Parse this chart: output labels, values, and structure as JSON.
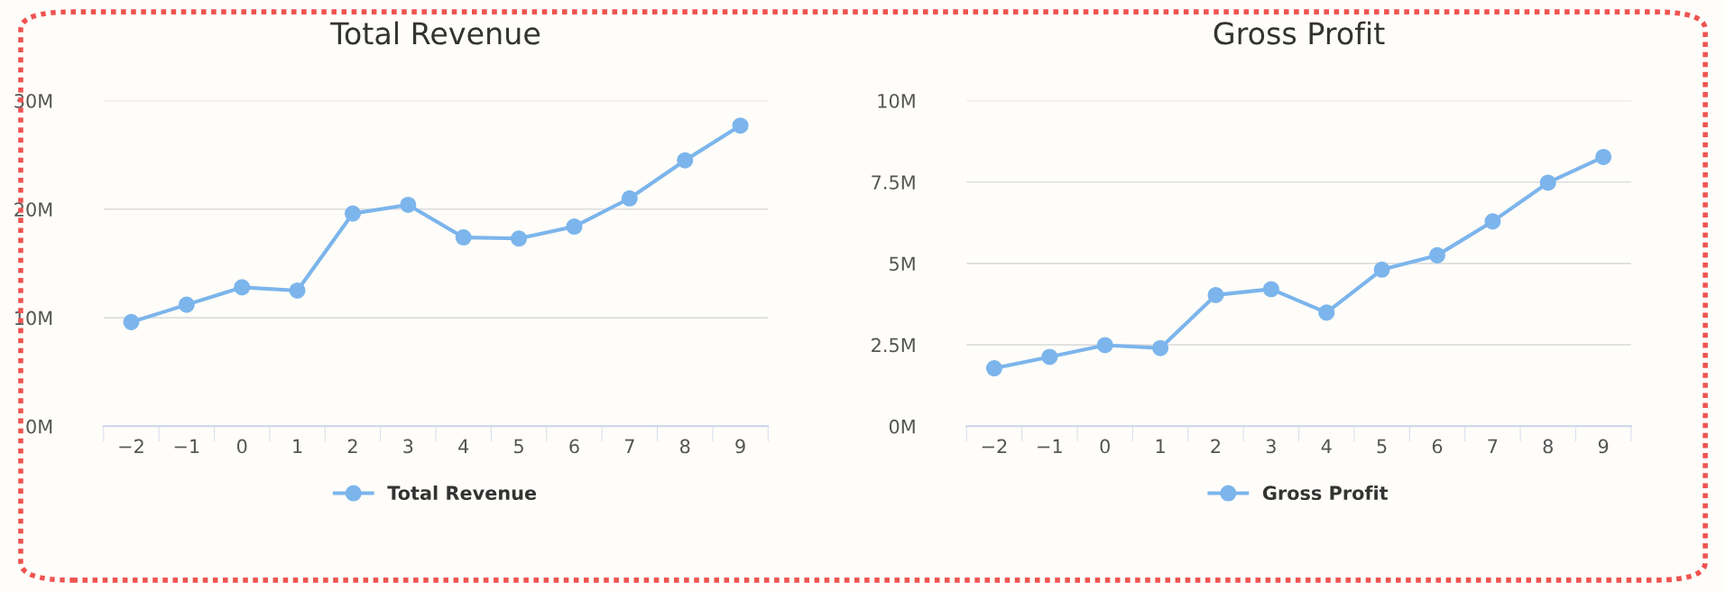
{
  "chart_data": [
    {
      "type": "line",
      "title": "Total Revenue",
      "categories": [
        "−2",
        "−1",
        "0",
        "1",
        "2",
        "3",
        "4",
        "5",
        "6",
        "7",
        "8",
        "9"
      ],
      "series": [
        {
          "name": "Total Revenue",
          "color": "#7cb5ec",
          "values": [
            9.6,
            11.2,
            12.8,
            12.5,
            19.6,
            20.4,
            17.4,
            17.3,
            18.4,
            21.0,
            24.5,
            27.7
          ]
        }
      ],
      "ylim": [
        0,
        30
      ],
      "yticks": [
        {
          "value": 0,
          "label": "0M"
        },
        {
          "value": 10,
          "label": "10M"
        },
        {
          "value": 20,
          "label": "20M"
        },
        {
          "value": 30,
          "label": "30M"
        }
      ],
      "grid": "y",
      "legend": "bottom",
      "marker": "circle",
      "line_style": "solid"
    },
    {
      "type": "line",
      "title": "Gross Profit",
      "categories": [
        "−2",
        "−1",
        "0",
        "1",
        "2",
        "3",
        "4",
        "5",
        "6",
        "7",
        "8",
        "9"
      ],
      "series": [
        {
          "name": "Gross Profit",
          "color": "#7cb5ec",
          "values": [
            1.78,
            2.13,
            2.49,
            2.4,
            4.03,
            4.21,
            3.49,
            4.81,
            5.25,
            6.29,
            7.48,
            8.27
          ]
        }
      ],
      "ylim": [
        0,
        10
      ],
      "yticks": [
        {
          "value": 0,
          "label": "0M"
        },
        {
          "value": 2.5,
          "label": "2.5M"
        },
        {
          "value": 5,
          "label": "5M"
        },
        {
          "value": 7.5,
          "label": "7.5M"
        },
        {
          "value": 10,
          "label": "10M"
        }
      ],
      "grid": "y",
      "legend": "bottom",
      "marker": "circle",
      "line_style": "solid"
    }
  ]
}
